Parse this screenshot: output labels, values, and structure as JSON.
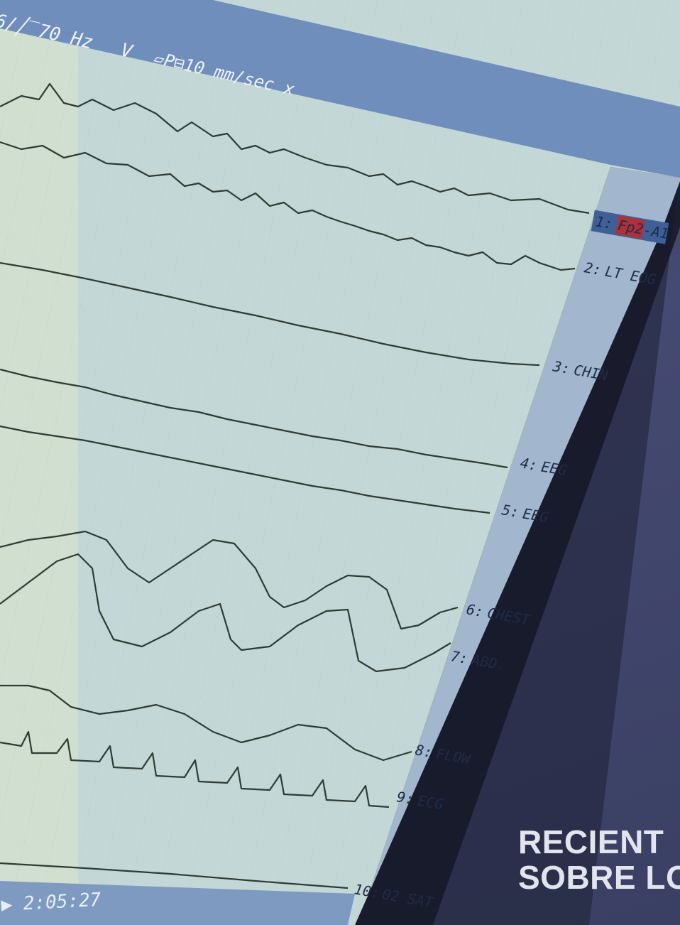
{
  "monitor": {
    "header": {
      "filter": "6/╱‾70 Hz",
      "scale_mark": "V",
      "speed": "▱P⊟10 mm/sec x"
    },
    "timestamp": "▶ 2:05:27",
    "channels": [
      {
        "label_num": "1:",
        "label_name": "Fp2-A1",
        "highlight": true
      },
      {
        "label_num": "2:",
        "label_name": "LT EOG"
      },
      {
        "label_num": "3:",
        "label_name": "CHIN"
      },
      {
        "label_num": "4:",
        "label_name": "EEG"
      },
      {
        "label_num": "5:",
        "label_name": "EEG"
      },
      {
        "label_num": "6:",
        "label_name": "CHEST"
      },
      {
        "label_num": "7:",
        "label_name": "ABD."
      },
      {
        "label_num": "8:",
        "label_name": "FLOW"
      },
      {
        "label_num": "9:",
        "label_name": "ECG"
      },
      {
        "label_num": "10:",
        "label_name": "02 SAT"
      }
    ]
  },
  "cover": {
    "title_line1": "RECIENT",
    "title_line2": "SOBRE LO"
  },
  "colors": {
    "screen": "#bfd6d4",
    "panel": "#9fb3cb",
    "header_bar": "#5b7cb1",
    "trace": "#2b3a32",
    "highlight": "#b0303a"
  }
}
